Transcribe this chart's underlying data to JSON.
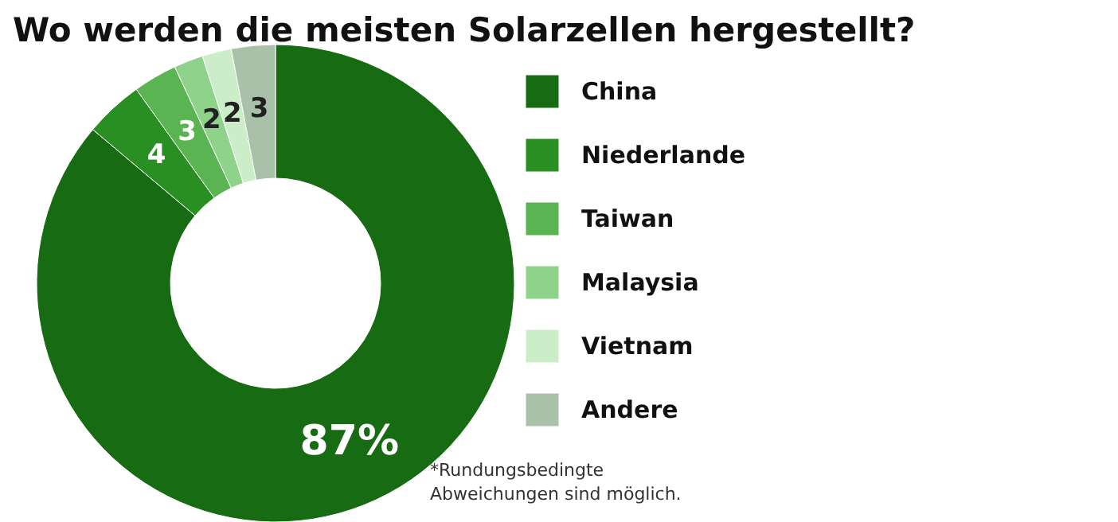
{
  "chart_data": {
    "type": "donut",
    "title": "Wo werden die meisten Solarzellen hergestellt?",
    "categories": [
      "China",
      "Niederlande",
      "Taiwan",
      "Malaysia",
      "Vietnam",
      "Andere"
    ],
    "values": [
      87,
      4,
      3,
      2,
      2,
      3
    ],
    "colors": [
      "#176b12",
      "#2a8f23",
      "#59b451",
      "#8fd38a",
      "#cbeec8",
      "#a9c0a9"
    ],
    "value_labels": [
      "87%",
      "4",
      "3",
      "2",
      "2",
      "3"
    ],
    "legend": "right",
    "annotations": [
      "*Rundungsbedingte Abweichungen sind möglich."
    ]
  }
}
